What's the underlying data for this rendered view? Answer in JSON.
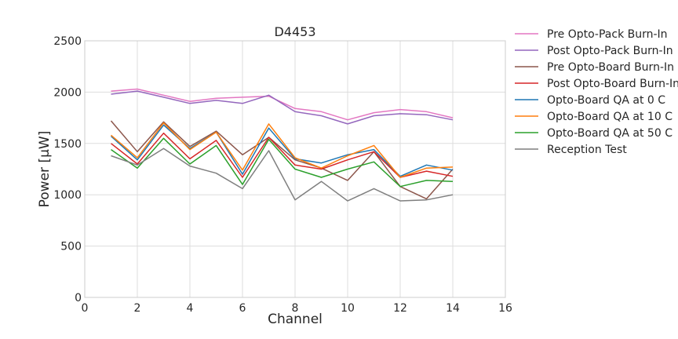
{
  "chart_data": {
    "type": "line",
    "title": "D4453",
    "xlabel": "Channel",
    "ylabel": "Power [μW]",
    "xlim": [
      0,
      16
    ],
    "ylim": [
      0,
      2500
    ],
    "xticks": [
      0,
      2,
      4,
      6,
      8,
      10,
      12,
      14,
      16
    ],
    "yticks": [
      0,
      500,
      1000,
      1500,
      2000,
      2500
    ],
    "grid": true,
    "legend_position": "outside-right",
    "x": [
      1,
      2,
      3,
      4,
      5,
      6,
      7,
      8,
      9,
      10,
      11,
      12,
      13,
      14
    ],
    "series": [
      {
        "name": "Pre Opto-Pack Burn-In",
        "color": "#e377c2",
        "values": [
          2010,
          2030,
          1970,
          1910,
          1940,
          1950,
          1960,
          1840,
          1810,
          1730,
          1800,
          1830,
          1810,
          1750
        ]
      },
      {
        "name": "Post Opto-Pack Burn-In",
        "color": "#9467bd",
        "values": [
          1980,
          2010,
          1950,
          1890,
          1920,
          1890,
          1970,
          1810,
          1770,
          1690,
          1770,
          1790,
          1780,
          1730
        ]
      },
      {
        "name": "Pre Opto-Board Burn-In",
        "color": "#8c564b",
        "values": [
          1720,
          1420,
          1710,
          1470,
          1620,
          1390,
          1560,
          1340,
          1260,
          1140,
          1420,
          1080,
          960,
          1250
        ]
      },
      {
        "name": "Post Opto-Board Burn-In",
        "color": "#d62728",
        "values": [
          1500,
          1300,
          1600,
          1350,
          1530,
          1170,
          1560,
          1290,
          1250,
          1340,
          1420,
          1170,
          1230,
          1180
        ]
      },
      {
        "name": "Opto-Board QA at 0 C",
        "color": "#1f77b4",
        "values": [
          1570,
          1340,
          1680,
          1450,
          1610,
          1200,
          1650,
          1350,
          1310,
          1390,
          1440,
          1180,
          1290,
          1240
        ]
      },
      {
        "name": "Opto-Board QA at 10 C",
        "color": "#ff7f0e",
        "values": [
          1580,
          1360,
          1700,
          1440,
          1610,
          1240,
          1690,
          1360,
          1260,
          1380,
          1480,
          1170,
          1260,
          1270
        ]
      },
      {
        "name": "Opto-Board QA at 50 C",
        "color": "#2ca02c",
        "values": [
          1440,
          1260,
          1550,
          1300,
          1480,
          1100,
          1540,
          1250,
          1170,
          1250,
          1320,
          1080,
          1140,
          1130
        ]
      },
      {
        "name": "Reception Test",
        "color": "#7f7f7f",
        "values": [
          1380,
          1290,
          1450,
          1280,
          1210,
          1060,
          1430,
          950,
          1130,
          940,
          1060,
          940,
          950,
          1000
        ]
      }
    ]
  }
}
